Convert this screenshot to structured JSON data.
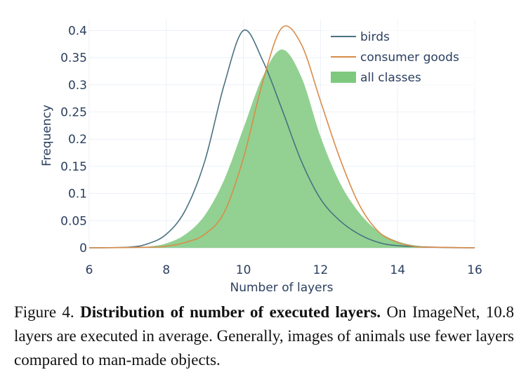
{
  "chart_data": {
    "type": "line",
    "xlabel": "Number of layers",
    "ylabel": "Frequency",
    "xlim": [
      6,
      16
    ],
    "ylim": [
      0,
      0.42
    ],
    "xticks": [
      6,
      8,
      10,
      12,
      14,
      16
    ],
    "yticks": [
      0,
      0.05,
      0.1,
      0.15,
      0.2,
      0.25,
      0.3,
      0.35,
      0.4
    ],
    "ytick_labels": [
      "0",
      "0.05",
      "0.1",
      "0.15",
      "0.2",
      "0.25",
      "0.3",
      "0.35",
      "0.4"
    ],
    "grid": true,
    "legend_position": "top-right",
    "series": [
      {
        "name": "birds",
        "style": "line",
        "color": "#4a7180",
        "x": [
          6,
          7,
          7.5,
          8,
          8.5,
          9,
          9.5,
          10,
          10.5,
          11,
          11.5,
          12,
          12.5,
          13,
          13.5,
          14,
          15,
          16
        ],
        "y": [
          0,
          0.001,
          0.007,
          0.025,
          0.07,
          0.16,
          0.3,
          0.4,
          0.345,
          0.255,
          0.16,
          0.09,
          0.05,
          0.025,
          0.01,
          0.004,
          0.001,
          0
        ]
      },
      {
        "name": "consumer goods",
        "style": "line",
        "color": "#d98c4a",
        "x": [
          6,
          7.5,
          8,
          8.5,
          9,
          9.5,
          10,
          10.5,
          11,
          11.5,
          12,
          12.5,
          13,
          13.5,
          14,
          14.5,
          15,
          16
        ],
        "y": [
          0,
          0.001,
          0.003,
          0.01,
          0.025,
          0.065,
          0.165,
          0.305,
          0.405,
          0.375,
          0.27,
          0.165,
          0.08,
          0.03,
          0.01,
          0.002,
          0.001,
          0
        ]
      },
      {
        "name": "all classes",
        "style": "area",
        "color": "#7fc97f",
        "x": [
          6,
          7,
          7.5,
          8,
          8.5,
          9,
          9.5,
          10,
          10.5,
          11,
          11.5,
          12,
          12.5,
          13,
          13.5,
          14,
          14.5,
          15,
          16
        ],
        "y": [
          0,
          0,
          0.002,
          0.008,
          0.025,
          0.06,
          0.125,
          0.22,
          0.315,
          0.365,
          0.315,
          0.205,
          0.12,
          0.065,
          0.03,
          0.012,
          0.004,
          0.001,
          0
        ]
      }
    ]
  },
  "caption": {
    "label": "Figure 4.",
    "title": "Distribution of number of executed layers.",
    "text": "On ImageNet, 10.8 layers are executed in average. Generally, images of animals use fewer layers compared to man-made objects."
  }
}
